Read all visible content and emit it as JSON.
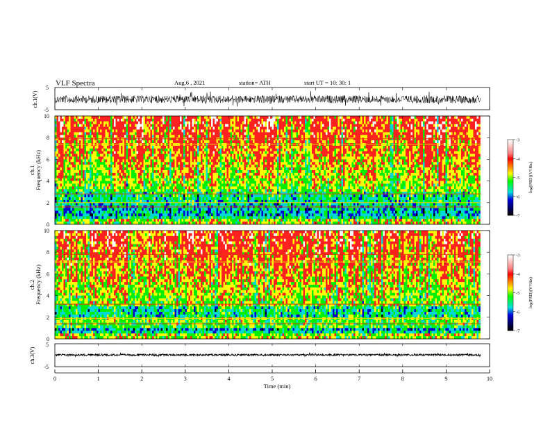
{
  "header": {
    "title": "VLF  Spectra",
    "date": "Aug.6   , 2021",
    "station": "station= ATH",
    "start_ut": "start  UT  =     10: 30: 1"
  },
  "panels": {
    "ch1_waveform": {
      "ylabel": "ch.1(V)",
      "ticks": [
        "5",
        "-5"
      ]
    },
    "ch1_spectrogram": {
      "ylabel_top": "ch.1",
      "ylabel": "Frequency  (kHz)",
      "ticks": [
        "10",
        "8",
        "6",
        "4",
        "2",
        "0"
      ]
    },
    "ch2_spectrogram": {
      "ylabel_top": "ch.2",
      "ylabel": "Frequency  (kHz)",
      "ticks": [
        "10",
        "8",
        "6",
        "4",
        "2",
        "0"
      ]
    },
    "ch3_waveform": {
      "ylabel": "ch.3(V)",
      "ticks": [
        "5",
        "-5"
      ]
    }
  },
  "xaxis": {
    "label": "Time  (min)",
    "ticks": [
      "0",
      "1",
      "2",
      "3",
      "4",
      "5",
      "6",
      "7",
      "8",
      "9",
      "10"
    ]
  },
  "colorbar": {
    "label": "log(PSD)(V²/Hz)",
    "ticks": [
      "-3",
      "-4",
      "-5",
      "-6",
      "-7"
    ],
    "colors": [
      "#ffffff",
      "#ff2020",
      "#ffff00",
      "#00ee00",
      "#00d8d8",
      "#0000cc",
      "#000000"
    ]
  },
  "chart_data": {
    "type": "heatmap",
    "title": "VLF  Spectra",
    "xlabel": "Time  (min)",
    "xlim": [
      0,
      10
    ],
    "data_end_min": 9.8,
    "spectrogram_ylim_khz": [
      0,
      10
    ],
    "waveform_ylim_v": [
      -5,
      5
    ],
    "colorbar_range_log_psd": [
      -7,
      -3
    ],
    "channels": [
      {
        "name": "ch.1",
        "kind": "waveform"
      },
      {
        "name": "ch.1",
        "kind": "spectrogram"
      },
      {
        "name": "ch.2",
        "kind": "spectrogram"
      },
      {
        "name": "ch.3",
        "kind": "waveform"
      }
    ]
  }
}
